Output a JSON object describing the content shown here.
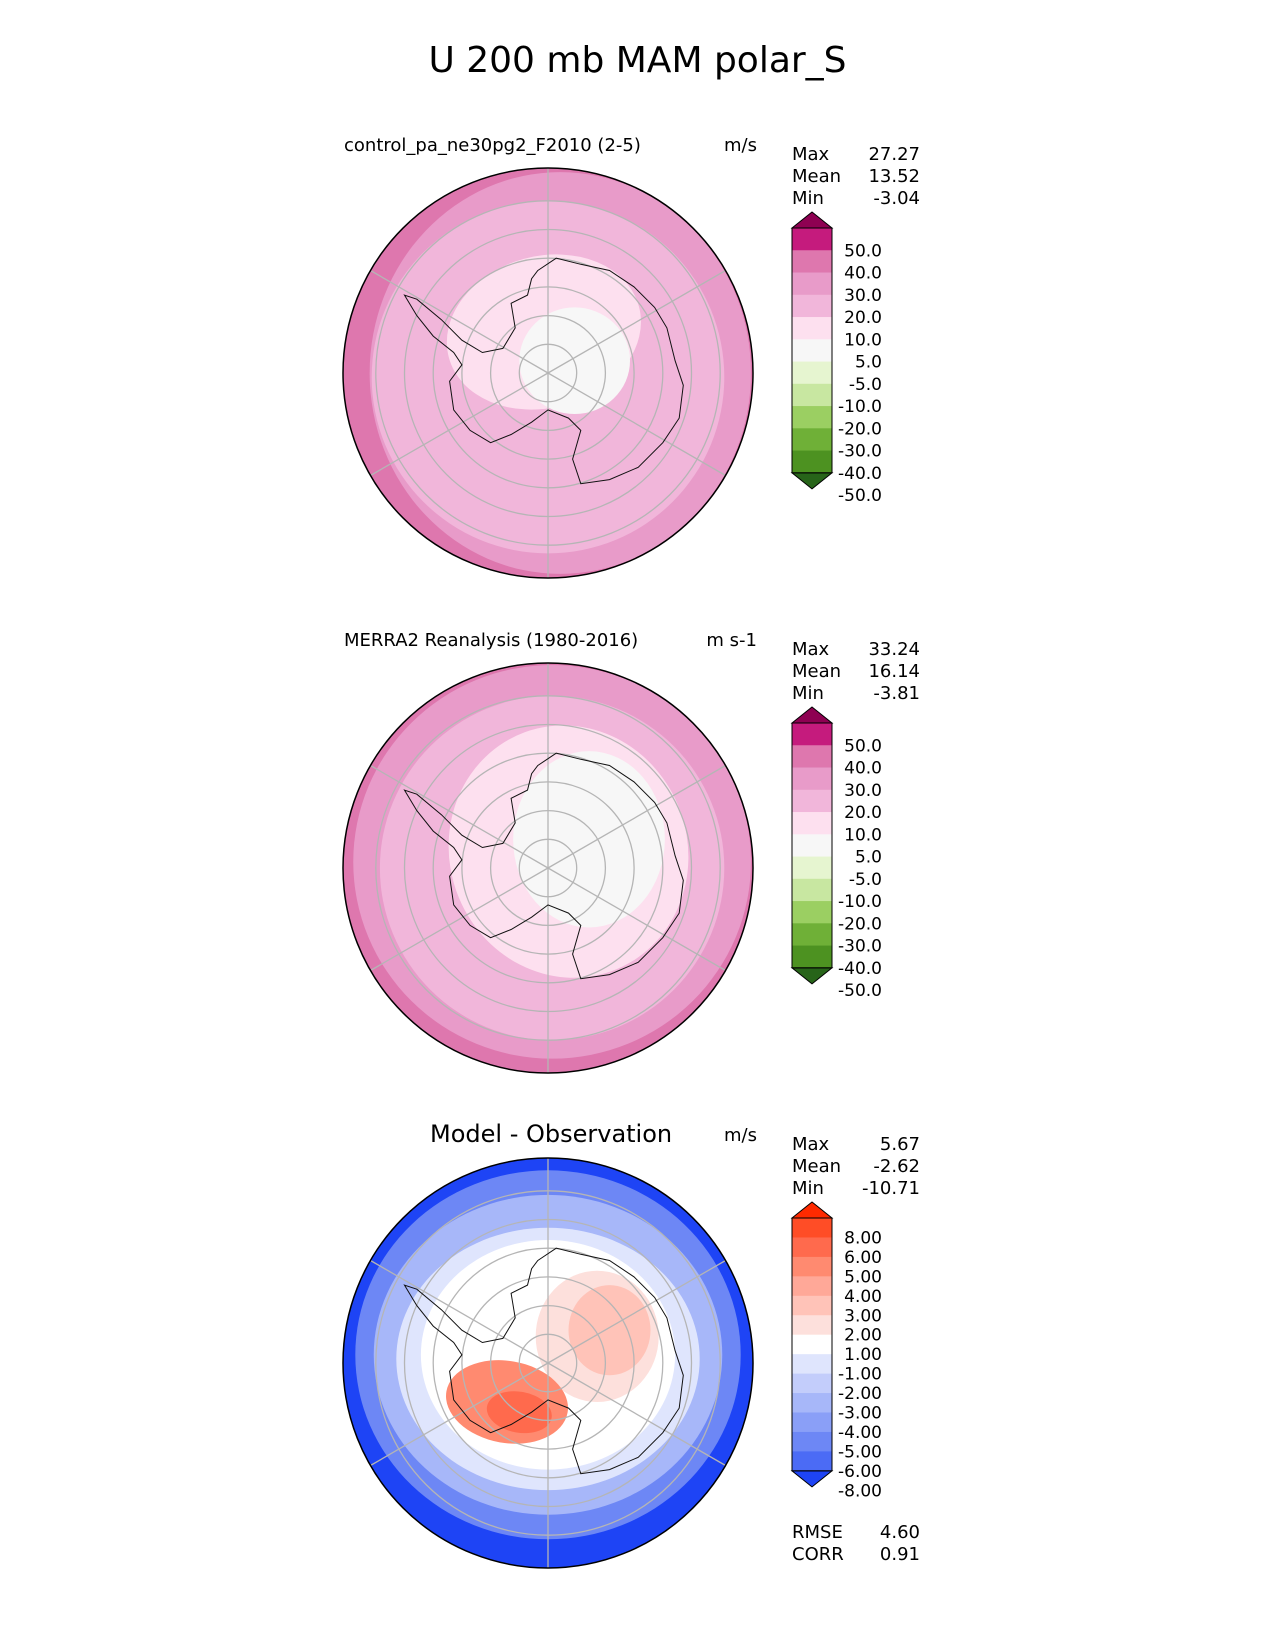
{
  "page_title": "U 200 mb MAM polar_S",
  "chart_data": [
    {
      "type": "heatmap",
      "projection": "south-polar-stereographic",
      "title": "control_pa_ne30pg2_F2010 (2-5)",
      "units": "m/s",
      "stats": [
        {
          "label": "Max",
          "value": "27.27"
        },
        {
          "label": "Mean",
          "value": "13.52"
        },
        {
          "label": "Min",
          "value": "-3.04"
        }
      ],
      "colorbar": {
        "levels": [
          -50,
          -40,
          -30,
          -20,
          -10,
          -5,
          5,
          10,
          20,
          30,
          40,
          50
        ],
        "tick_labels": [
          "50.0",
          "40.0",
          "30.0",
          "20.0",
          "10.0",
          "5.0",
          "-5.0",
          "-10.0",
          "-20.0",
          "-30.0",
          "-40.0",
          "-50.0"
        ],
        "colors_top_to_bottom": [
          "#8e0152",
          "#c51b7d",
          "#de77ae",
          "#e89bc9",
          "#f1b6da",
          "#fde0ef",
          "#f7f7f7",
          "#e6f5d0",
          "#c8e7a1",
          "#9bcf62",
          "#6fb037",
          "#4d9221",
          "#276419"
        ]
      },
      "bands": [
        {
          "level": "30-40",
          "color": "#de77ae"
        },
        {
          "level": "20-30",
          "color": "#e89bc9"
        },
        {
          "level": "10-20",
          "color": "#f1b6da"
        },
        {
          "level": "5-10",
          "color": "#fde0ef"
        },
        {
          "level": "-5-5",
          "color": "#f7f7f7"
        }
      ]
    },
    {
      "type": "heatmap",
      "projection": "south-polar-stereographic",
      "title": "MERRA2 Reanalysis (1980-2016)",
      "units": "m s-1",
      "stats": [
        {
          "label": "Max",
          "value": "33.24"
        },
        {
          "label": "Mean",
          "value": "16.14"
        },
        {
          "label": "Min",
          "value": "-3.81"
        }
      ],
      "colorbar": {
        "levels": [
          -50,
          -40,
          -30,
          -20,
          -10,
          -5,
          5,
          10,
          20,
          30,
          40,
          50
        ],
        "tick_labels": [
          "50.0",
          "40.0",
          "30.0",
          "20.0",
          "10.0",
          "5.0",
          "-5.0",
          "-10.0",
          "-20.0",
          "-30.0",
          "-40.0",
          "-50.0"
        ],
        "colors_top_to_bottom": [
          "#8e0152",
          "#c51b7d",
          "#de77ae",
          "#e89bc9",
          "#f1b6da",
          "#fde0ef",
          "#f7f7f7",
          "#e6f5d0",
          "#c8e7a1",
          "#9bcf62",
          "#6fb037",
          "#4d9221",
          "#276419"
        ]
      },
      "bands": [
        {
          "level": "30-40",
          "color": "#de77ae"
        },
        {
          "level": "20-30",
          "color": "#e89bc9"
        },
        {
          "level": "10-20",
          "color": "#f1b6da"
        },
        {
          "level": "5-10",
          "color": "#fde0ef"
        },
        {
          "level": "-5-5",
          "color": "#f7f7f7"
        }
      ]
    },
    {
      "type": "heatmap",
      "projection": "south-polar-stereographic",
      "title": "Model - Observation",
      "units": "m/s",
      "stats": [
        {
          "label": "Max",
          "value": "5.67"
        },
        {
          "label": "Mean",
          "value": "-2.62"
        },
        {
          "label": "Min",
          "value": "-10.71"
        }
      ],
      "metrics": [
        {
          "label": "RMSE",
          "value": "4.60"
        },
        {
          "label": "CORR",
          "value": "0.91"
        }
      ],
      "colorbar": {
        "levels": [
          -8,
          -6,
          -5,
          -4,
          -3,
          -2,
          -1,
          1,
          2,
          3,
          4,
          5,
          6,
          8
        ],
        "tick_labels": [
          "8.00",
          "6.00",
          "5.00",
          "4.00",
          "3.00",
          "2.00",
          "1.00",
          "-1.00",
          "-2.00",
          "-3.00",
          "-4.00",
          "-5.00",
          "-6.00",
          "-8.00"
        ],
        "colors_top_to_bottom": [
          "#ff2a00",
          "#ff4d26",
          "#ff6a4d",
          "#ff8a70",
          "#ffa898",
          "#ffc3b8",
          "#fde0dc",
          "#ffffff",
          "#dfe5fd",
          "#c3cdfb",
          "#a7b7f9",
          "#8a9ff7",
          "#6d87f5",
          "#4b6bf5",
          "#1e44f5"
        ]
      },
      "bands": [
        {
          "level": "<-8",
          "color": "#1e44f5"
        },
        {
          "level": "-6 to -5",
          "color": "#6d87f5"
        },
        {
          "level": "-4 to -3",
          "color": "#a7b7f9"
        },
        {
          "level": "-2 to -1",
          "color": "#dfe5fd"
        },
        {
          "level": "-1 to 1",
          "color": "#ffffff"
        },
        {
          "level": "1 to 2",
          "color": "#fde0dc"
        },
        {
          "level": "2 to 3",
          "color": "#ffc3b8"
        },
        {
          "level": "4 to 5",
          "color": "#ff8a70"
        },
        {
          "level": "5 to 6",
          "color": "#ff6a4d"
        }
      ]
    }
  ]
}
